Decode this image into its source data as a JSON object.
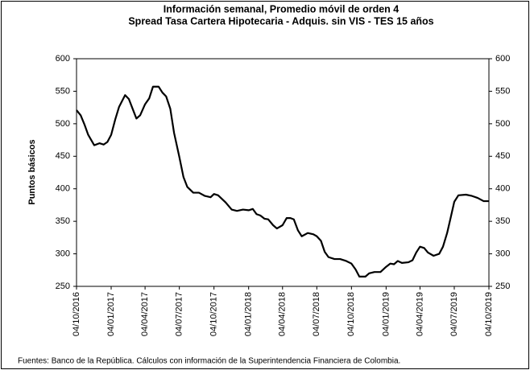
{
  "chart_data": {
    "type": "line",
    "title": "Información semanal, Promedio móvil de orden 4",
    "subtitle": "Spread Tasa Cartera Hipotecaria - Adquis. sin VIS -  TES 15 años",
    "y_label": "Puntos básicos",
    "source": "Fuentes: Banco de la República. Cálculos con información de la Superintendencia Financiera de Colombia.",
    "x": [
      "04/10/2016",
      "15/10/2016",
      "25/10/2016",
      "04/11/2016",
      "20/11/2016",
      "04/12/2016",
      "15/12/2016",
      "25/12/2016",
      "04/01/2017",
      "15/01/2017",
      "25/01/2017",
      "10/02/2017",
      "20/02/2017",
      "04/03/2017",
      "12/03/2017",
      "22/03/2017",
      "04/04/2017",
      "15/04/2017",
      "25/04/2017",
      "10/05/2017",
      "20/05/2017",
      "30/05/2017",
      "10/06/2017",
      "20/06/2017",
      "04/07/2017",
      "15/07/2017",
      "25/07/2017",
      "10/08/2017",
      "25/08/2017",
      "10/09/2017",
      "25/09/2017",
      "04/10/2017",
      "15/10/2017",
      "04/11/2017",
      "20/11/2017",
      "04/12/2017",
      "20/12/2017",
      "04/01/2018",
      "15/01/2018",
      "25/01/2018",
      "04/02/2018",
      "15/02/2018",
      "25/02/2018",
      "10/03/2018",
      "20/03/2018",
      "04/04/2018",
      "15/04/2018",
      "25/04/2018",
      "04/05/2018",
      "15/05/2018",
      "25/05/2018",
      "10/06/2018",
      "25/06/2018",
      "04/07/2018",
      "15/07/2018",
      "25/07/2018",
      "04/08/2018",
      "20/08/2018",
      "04/09/2018",
      "20/09/2018",
      "04/10/2018",
      "15/10/2018",
      "25/10/2018",
      "10/11/2018",
      "20/11/2018",
      "04/12/2018",
      "20/12/2018",
      "04/01/2019",
      "15/01/2019",
      "25/01/2019",
      "04/02/2019",
      "15/02/2019",
      "04/03/2019",
      "15/03/2019",
      "25/03/2019",
      "04/04/2019",
      "15/04/2019",
      "25/04/2019",
      "10/05/2019",
      "25/05/2019",
      "04/06/2019",
      "15/06/2019",
      "25/06/2019",
      "04/07/2019",
      "15/07/2019",
      "04/08/2019",
      "20/08/2019",
      "04/09/2019",
      "20/09/2019",
      "04/10/2019"
    ],
    "series": [
      {
        "name": "Spread",
        "color": "#000000",
        "values": [
          521,
          513,
          499,
          483,
          467,
          470,
          468,
          472,
          483,
          507,
          526,
          544,
          538,
          520,
          508,
          513,
          530,
          539,
          557,
          557,
          548,
          542,
          523,
          486,
          449,
          418,
          403,
          394,
          394,
          389,
          387,
          392,
          390,
          379,
          368,
          366,
          368,
          367,
          369,
          361,
          359,
          354,
          353,
          344,
          339,
          344,
          355,
          355,
          353,
          336,
          327,
          332,
          330,
          327,
          320,
          303,
          295,
          292,
          292,
          289,
          285,
          276,
          265,
          265,
          270,
          272,
          272,
          280,
          285,
          284,
          289,
          286,
          287,
          290,
          302,
          311,
          309,
          302,
          297,
          300,
          311,
          332,
          357,
          380,
          390,
          391,
          389,
          386,
          381,
          381
        ]
      }
    ],
    "xlim": [
      "04/10/2016",
      "04/10/2019"
    ],
    "xticks": [
      "04/10/2016",
      "04/01/2017",
      "04/04/2017",
      "04/07/2017",
      "04/10/2017",
      "04/01/2018",
      "04/04/2018",
      "04/07/2018",
      "04/10/2018",
      "04/01/2019",
      "04/04/2019",
      "04/07/2019",
      "04/10/2019"
    ],
    "ylim": [
      250,
      600
    ],
    "yticks": [
      250,
      300,
      350,
      400,
      450,
      500,
      550,
      600
    ],
    "y2lim": [
      250,
      600
    ],
    "y2ticks": [
      250,
      300,
      350,
      400,
      450,
      500,
      550,
      600
    ]
  }
}
